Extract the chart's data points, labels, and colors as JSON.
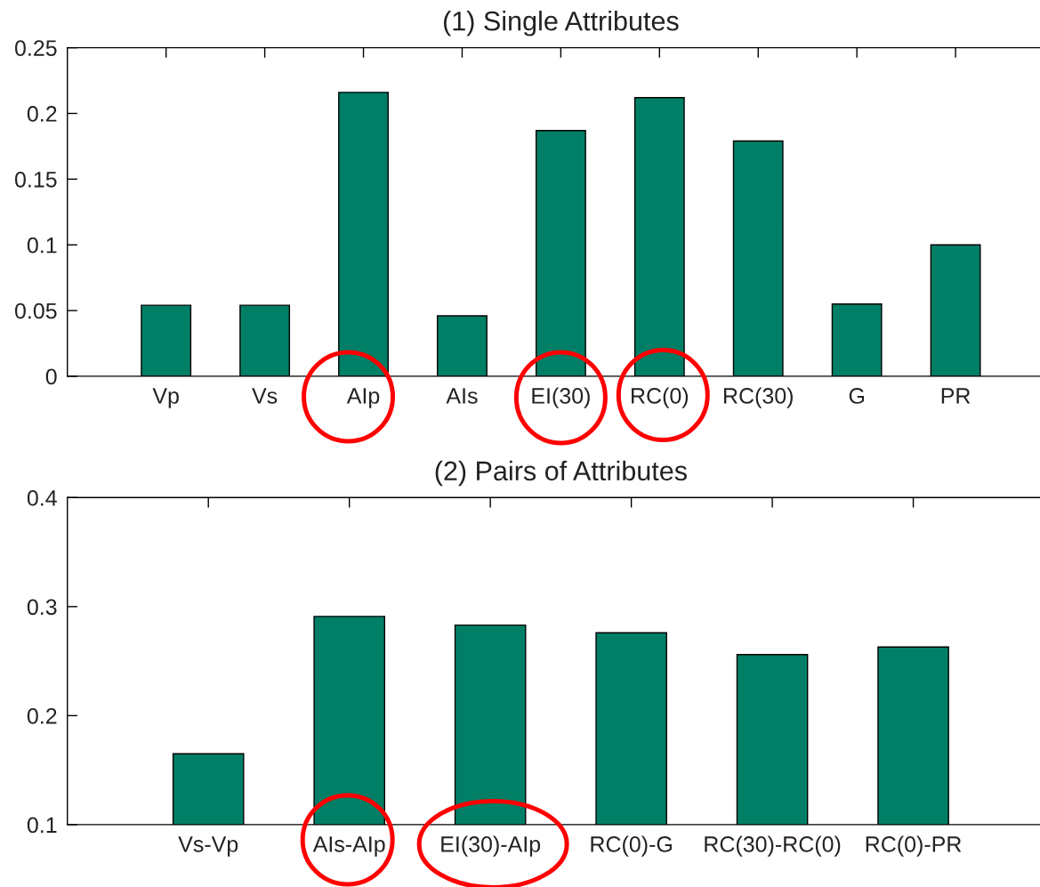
{
  "chart_data": [
    {
      "type": "bar",
      "title": "(1) Single Attributes",
      "categories": [
        "Vp",
        "Vs",
        "AIp",
        "AIs",
        "EI(30)",
        "RC(0)",
        "RC(30)",
        "G",
        "PR"
      ],
      "values": [
        0.054,
        0.054,
        0.216,
        0.046,
        0.187,
        0.212,
        0.179,
        0.055,
        0.1
      ],
      "color": "#007f66",
      "ylim": [
        0,
        0.25
      ],
      "yticks": [
        0,
        0.05,
        0.1,
        0.15,
        0.2,
        0.25
      ]
    },
    {
      "type": "bar",
      "title": "(2) Pairs of Attributes",
      "categories": [
        "Vs-Vp",
        "AIs-AIp",
        "EI(30)-AIp",
        "RC(0)-G",
        "RC(30)-RC(0)",
        "RC(0)-PR"
      ],
      "values": [
        0.165,
        0.291,
        0.283,
        0.276,
        0.256,
        0.263
      ],
      "color": "#007f66",
      "ylim": [
        0.1,
        0.4
      ],
      "yticks": [
        0.1,
        0.2,
        0.3,
        0.4
      ]
    }
  ]
}
